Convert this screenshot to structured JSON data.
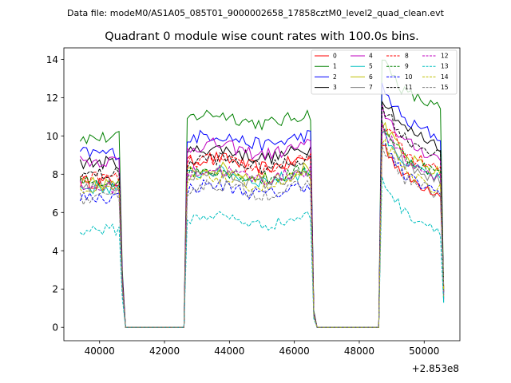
{
  "chart_data": {
    "type": "line",
    "suptitle": "Data file: modeM0/AS1A05_085T01_9000002658_17858cztM0_level2_quad_clean.evt",
    "title": "Quadrant 0 module wise count rates with 100.0s bins.",
    "xlabel": "",
    "ylabel": "",
    "x_offset_label": "+2.853e8",
    "xlim": [
      38900,
      51100
    ],
    "ylim": [
      -0.7,
      14.6
    ],
    "xticks": [
      40000,
      42000,
      44000,
      46000,
      48000,
      50000
    ],
    "xtick_labels": [
      "40000",
      "42000",
      "44000",
      "46000",
      "48000",
      "50000"
    ],
    "yticks": [
      0,
      2,
      4,
      6,
      8,
      10,
      12,
      14
    ],
    "ytick_labels": [
      "0",
      "2",
      "4",
      "6",
      "8",
      "10",
      "12",
      "14"
    ],
    "legend_position": "upper right",
    "segments": [
      {
        "start": 39400,
        "end": 40600
      },
      {
        "start": 42700,
        "end": 46500
      },
      {
        "start": 48700,
        "end": 50500
      }
    ],
    "segment_edges": {
      "pre_drop_1": 40700,
      "zero_1": 40800,
      "zero_end_1": 42600,
      "pre_drop_2": 46600,
      "zero_2": 46700,
      "zero_end_2": 48600,
      "tail_end": 50600
    },
    "bin_width_s": 100,
    "series": [
      {
        "name": "0",
        "color": "#ff0000",
        "dash": "solid",
        "level": [
          7.6,
          8.6,
          8.4
        ],
        "noise": 0.35,
        "tail": 2.0
      },
      {
        "name": "1",
        "color": "#008000",
        "dash": "solid",
        "level": [
          9.9,
          10.9,
          12.8
        ],
        "noise": 0.35,
        "tail": 1.9
      },
      {
        "name": "2",
        "color": "#0000ff",
        "dash": "solid",
        "level": [
          9.1,
          9.8,
          11.3
        ],
        "noise": 0.35,
        "tail": 1.7
      },
      {
        "name": "3",
        "color": "#000000",
        "dash": "solid",
        "level": [
          8.6,
          9.1,
          10.9
        ],
        "noise": 0.35,
        "tail": 1.5
      },
      {
        "name": "4",
        "color": "#bf00bf",
        "dash": "solid",
        "level": [
          8.7,
          9.3,
          10.2
        ],
        "noise": 0.35,
        "tail": 1.4
      },
      {
        "name": "5",
        "color": "#00bfbf",
        "dash": "solid",
        "level": [
          7.3,
          7.9,
          9.1
        ],
        "noise": 0.35,
        "tail": 1.3
      },
      {
        "name": "6",
        "color": "#bfbf00",
        "dash": "solid",
        "level": [
          7.5,
          8.1,
          9.4
        ],
        "noise": 0.35,
        "tail": 1.6
      },
      {
        "name": "7",
        "color": "#808080",
        "dash": "solid",
        "level": [
          7.4,
          7.8,
          9.0
        ],
        "noise": 0.35,
        "tail": 1.8
      },
      {
        "name": "8",
        "color": "#ff0000",
        "dash": "dashed",
        "level": [
          7.8,
          8.5,
          9.6
        ],
        "noise": 0.35,
        "tail": 2.1
      },
      {
        "name": "9",
        "color": "#008000",
        "dash": "dashed",
        "level": [
          7.6,
          8.0,
          9.4
        ],
        "noise": 0.35,
        "tail": 2.0
      },
      {
        "name": "10",
        "color": "#0000ff",
        "dash": "dashed",
        "level": [
          6.8,
          7.2,
          8.4
        ],
        "noise": 0.35,
        "tail": 1.9
      },
      {
        "name": "11",
        "color": "#000000",
        "dash": "dashed",
        "level": [
          8.0,
          8.6,
          10.4
        ],
        "noise": 0.35,
        "tail": 1.8
      },
      {
        "name": "12",
        "color": "#bf00bf",
        "dash": "dashed",
        "level": [
          7.3,
          8.0,
          9.2
        ],
        "noise": 0.35,
        "tail": 1.7
      },
      {
        "name": "13",
        "color": "#00bfbf",
        "dash": "dashed",
        "level": [
          5.1,
          5.6,
          6.5
        ],
        "noise": 0.3,
        "tail": 1.25
      },
      {
        "name": "14",
        "color": "#bfbf00",
        "dash": "dashed",
        "level": [
          7.1,
          7.6,
          8.6
        ],
        "noise": 0.35,
        "tail": 1.9
      },
      {
        "name": "15",
        "color": "#808080",
        "dash": "dashed",
        "level": [
          6.7,
          7.2,
          8.3
        ],
        "noise": 0.35,
        "tail": 2.2
      }
    ]
  }
}
